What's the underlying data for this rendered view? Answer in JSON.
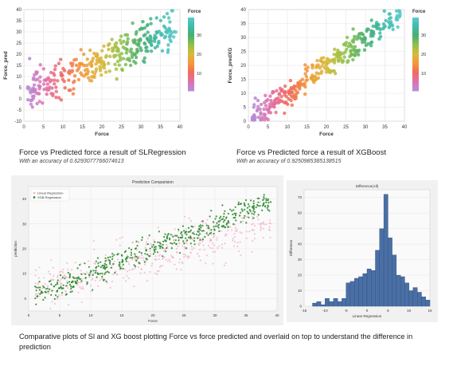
{
  "charts_meta": {
    "colors": {
      "grid": "#e4e4e4",
      "axis": "#666666",
      "pink": "#f4b6c9",
      "green": "#2e8b2e",
      "hist_bar": "#4a6fa5",
      "hist_edge": "#2f4f7f"
    }
  },
  "captions": {
    "left_title": "Force vs Predicted force a result of SLRegression",
    "left_sub": "With an accuracy of 0.6293077766074613",
    "right_title": "Force vs Predicted force a result of XGBoost",
    "right_sub": "With an accuracy of 0.9250985385138515",
    "bottom": "Comparative plots of Sl and XG boost plotting Force vs force predicted and overlaid on top to understand the difference in prediction"
  },
  "chart_data": [
    {
      "type": "scatter",
      "xlabel": "Force",
      "ylabel": "Force_pred",
      "xlim": [
        0,
        40
      ],
      "ylim": [
        -10,
        40
      ],
      "xticks": [
        "0",
        "5",
        "10",
        "15",
        "20",
        "25",
        "30",
        "35",
        "40"
      ],
      "yticks": [
        "-10",
        "-5",
        "0",
        "5",
        "10",
        "15",
        "20",
        "25",
        "30",
        "35",
        "40"
      ],
      "grid": true,
      "legend": {
        "title": "Force",
        "ticks": [
          "10",
          "20",
          "30"
        ],
        "placement": "right"
      },
      "series_model": "slregression",
      "n_points": 340
    },
    {
      "type": "scatter",
      "xlabel": "Force",
      "ylabel": "Force_predXG",
      "xlim": [
        0,
        40
      ],
      "ylim": [
        0,
        40
      ],
      "xticks": [
        "0",
        "5",
        "10",
        "15",
        "20",
        "25",
        "30",
        "35",
        "40"
      ],
      "yticks": [
        "0",
        "5",
        "10",
        "15",
        "20",
        "25",
        "30",
        "35",
        "40"
      ],
      "grid": true,
      "legend": {
        "title": "Force",
        "ticks": [
          "10",
          "20",
          "30"
        ],
        "placement": "right"
      },
      "series_model": "xgboost",
      "n_points": 340
    },
    {
      "type": "scatter",
      "title": "Prediction Comparision",
      "xlabel": "Force",
      "ylabel": "prediction",
      "xlim": [
        0,
        40
      ],
      "ylim": [
        -5,
        45
      ],
      "xticks": [
        "0",
        "5",
        "10",
        "15",
        "20",
        "25",
        "30",
        "35",
        "40"
      ],
      "yticks": [
        "0",
        "10",
        "20",
        "30",
        "40"
      ],
      "grid": true,
      "legend_placement": "top-left",
      "series": [
        {
          "name": "Linear Regression",
          "color": "#f4b6c9"
        },
        {
          "name": "XGB Regression",
          "color": "#2e8b2e"
        }
      ]
    },
    {
      "type": "bar",
      "title": "Difference(All)",
      "xlabel": "Linear Regression",
      "ylabel": "Difference",
      "xlim": [
        -15,
        15
      ],
      "ylim": [
        0,
        75
      ],
      "xticks": [
        "-15",
        "-10",
        "-5",
        "0",
        "5",
        "10",
        "15"
      ],
      "yticks": [
        "0",
        "10",
        "20",
        "30",
        "40",
        "50",
        "60",
        "70"
      ],
      "bin_width": 1,
      "bin_start": -13,
      "values": [
        2,
        3,
        1,
        5,
        3,
        5,
        3,
        5,
        15,
        16,
        18,
        19,
        21,
        24,
        23,
        36,
        50,
        72,
        44,
        33,
        20,
        19,
        15,
        10,
        12,
        9,
        6,
        4
      ]
    }
  ]
}
